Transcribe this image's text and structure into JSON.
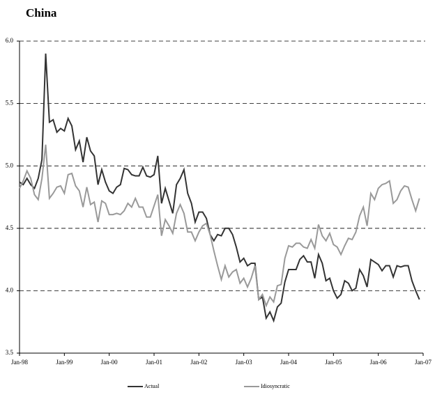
{
  "chart_data": {
    "type": "line",
    "title": "China",
    "categories": [
      "Jan-98",
      null,
      null,
      null,
      null,
      null,
      null,
      null,
      null,
      null,
      null,
      null,
      "Jan-99",
      null,
      null,
      null,
      null,
      null,
      null,
      null,
      null,
      null,
      null,
      null,
      "Jan-00",
      null,
      null,
      null,
      null,
      null,
      null,
      null,
      null,
      null,
      null,
      null,
      "Jan-01",
      null,
      null,
      null,
      null,
      null,
      null,
      null,
      null,
      null,
      null,
      null,
      "Jan-02",
      null,
      null,
      null,
      null,
      null,
      null,
      null,
      null,
      null,
      null,
      null,
      "Jan-03",
      null,
      null,
      null,
      null,
      null,
      null,
      null,
      null,
      null,
      null,
      null,
      "Jan-04",
      null,
      null,
      null,
      null,
      null,
      null,
      null,
      null,
      null,
      null,
      null,
      "Jan-05",
      null,
      null,
      null,
      null,
      null,
      null,
      null,
      null,
      null,
      null,
      null,
      "Jan-06",
      null,
      null,
      null,
      null,
      null,
      null,
      null,
      null,
      null,
      null,
      null,
      "Jan-07"
    ],
    "series": [
      {
        "name": "Actual",
        "color": "#333333",
        "values": [
          4.87,
          4.85,
          4.9,
          4.85,
          4.82,
          4.9,
          5.05,
          5.9,
          5.35,
          5.37,
          5.27,
          5.3,
          5.28,
          5.38,
          5.32,
          5.13,
          5.2,
          5.03,
          5.23,
          5.12,
          5.08,
          4.85,
          4.97,
          4.87,
          4.8,
          4.78,
          4.83,
          4.85,
          4.98,
          4.97,
          4.93,
          4.92,
          4.92,
          4.99,
          4.92,
          4.91,
          4.93,
          5.08,
          4.7,
          4.82,
          4.72,
          4.62,
          4.85,
          4.9,
          4.97,
          4.78,
          4.7,
          4.55,
          4.63,
          4.63,
          4.58,
          4.45,
          4.4,
          4.45,
          4.44,
          4.5,
          4.5,
          4.45,
          4.35,
          4.23,
          4.26,
          4.2,
          4.22,
          4.22,
          3.93,
          3.95,
          3.78,
          3.83,
          3.76,
          3.87,
          3.9,
          4.07,
          4.17,
          4.17,
          4.17,
          4.25,
          4.28,
          4.23,
          4.23,
          4.1,
          4.29,
          4.22,
          4.08,
          4.1,
          4.0,
          3.94,
          3.97,
          4.08,
          4.06,
          4.0,
          4.02,
          4.17,
          4.12,
          4.03,
          4.25,
          4.23,
          4.21,
          4.16,
          4.2,
          4.2,
          4.11,
          4.2,
          4.19,
          4.2,
          4.2,
          4.08,
          4.0,
          3.93,
          null
        ]
      },
      {
        "name": "Idiosyncratic",
        "color": "#999999",
        "values": [
          4.82,
          4.88,
          4.96,
          4.9,
          4.77,
          4.73,
          4.9,
          5.17,
          4.74,
          4.78,
          4.83,
          4.84,
          4.78,
          4.93,
          4.94,
          4.84,
          4.8,
          4.67,
          4.83,
          4.69,
          4.71,
          4.55,
          4.72,
          4.7,
          4.61,
          4.61,
          4.62,
          4.61,
          4.64,
          4.7,
          4.67,
          4.74,
          4.67,
          4.67,
          4.59,
          4.59,
          4.68,
          4.77,
          4.44,
          4.57,
          4.52,
          4.46,
          4.62,
          4.69,
          4.62,
          4.47,
          4.47,
          4.4,
          4.47,
          4.52,
          4.54,
          4.45,
          4.32,
          4.2,
          4.09,
          4.2,
          4.11,
          4.15,
          4.17,
          4.06,
          4.1,
          4.03,
          4.1,
          4.2,
          3.93,
          3.97,
          3.88,
          3.95,
          3.91,
          4.04,
          4.05,
          4.26,
          4.36,
          4.35,
          4.38,
          4.38,
          4.35,
          4.34,
          4.41,
          4.34,
          4.53,
          4.44,
          4.4,
          4.46,
          4.37,
          4.35,
          4.29,
          4.36,
          4.42,
          4.41,
          4.47,
          4.6,
          4.67,
          4.52,
          4.78,
          4.73,
          4.82,
          4.85,
          4.86,
          4.88,
          4.7,
          4.73,
          4.8,
          4.84,
          4.83,
          4.73,
          4.64,
          4.74,
          null
        ]
      }
    ],
    "ylim": [
      3.5,
      6.0
    ],
    "yticks": [
      {
        "value": 3.5,
        "label": "3.5"
      },
      {
        "value": 4.0,
        "label": "4.0"
      },
      {
        "value": 4.5,
        "label": "4.5"
      },
      {
        "value": 5.0,
        "label": "5.0"
      },
      {
        "value": 5.5,
        "label": "5.5"
      },
      {
        "value": 6.0,
        "label": "6.0"
      }
    ],
    "grid": true,
    "legend": "bottom"
  }
}
